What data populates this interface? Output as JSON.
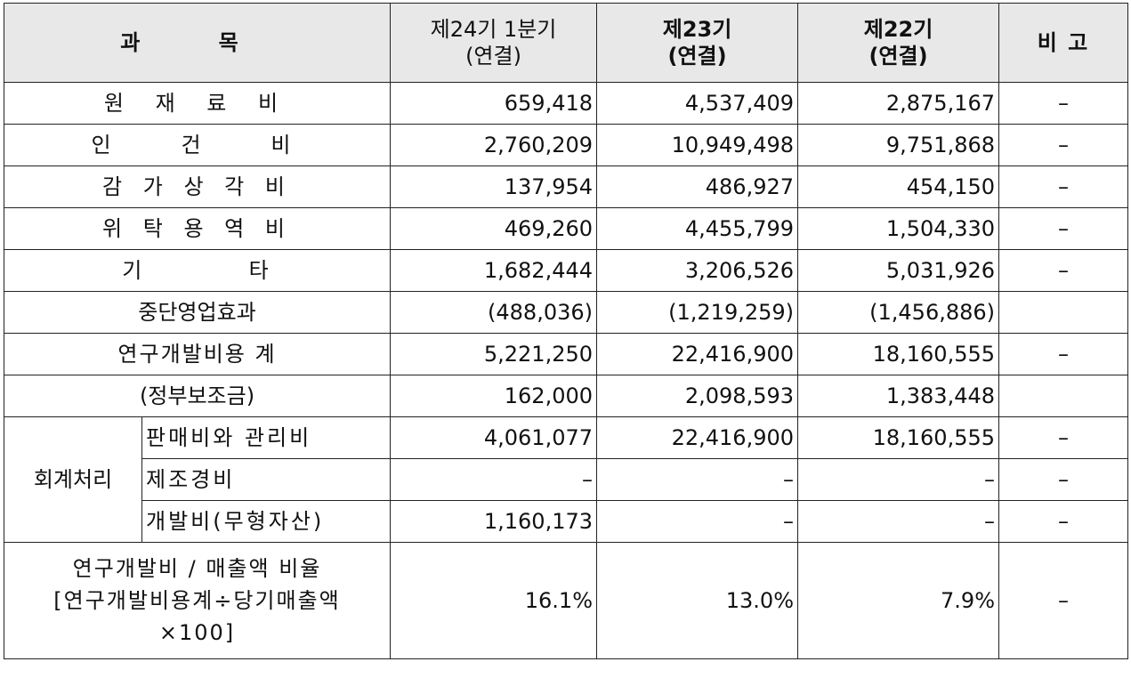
{
  "header": {
    "item": "과        목",
    "p24_line1": "제24기 1분기",
    "p24_line2": "(연결)",
    "p23_line1": "제23기",
    "p23_line2": "(연결)",
    "p22_line1": "제22기",
    "p22_line2": "(연결)",
    "note": "비 고"
  },
  "rows": [
    {
      "label": "원 재 료 비",
      "p24": "659,418",
      "p23": "4,537,409",
      "p22": "2,875,167",
      "note": "–"
    },
    {
      "label": "인   건   비",
      "p24": "2,760,209",
      "p23": "10,949,498",
      "p22": "9,751,868",
      "note": "–"
    },
    {
      "label": "감 가 상 각 비",
      "p24": "137,954",
      "p23": "486,927",
      "p22": "454,150",
      "note": "–"
    },
    {
      "label": "위 탁 용 역 비",
      "p24": "469,260",
      "p23": "4,455,799",
      "p22": "1,504,330",
      "note": "–"
    },
    {
      "label": "기          타",
      "p24": "1,682,444",
      "p23": "3,206,526",
      "p22": "5,031,926",
      "note": "–"
    },
    {
      "label": "중단영업효과",
      "p24": "(488,036)",
      "p23": "(1,219,259)",
      "p22": "(1,456,886)",
      "note": ""
    },
    {
      "label": "연구개발비용 계",
      "p24": "5,221,250",
      "p23": "22,416,900",
      "p22": "18,160,555",
      "note": "–"
    },
    {
      "label": "(정부보조금)",
      "p24": "162,000",
      "p23": "2,098,593",
      "p22": "1,383,448",
      "note": ""
    }
  ],
  "accounting": {
    "group_label": "회계처리",
    "rows": [
      {
        "label": "판매비와 관리비",
        "p24": "4,061,077",
        "p23": "22,416,900",
        "p22": "18,160,555",
        "note": "–"
      },
      {
        "label": "제조경비",
        "p24": "–",
        "p23": "–",
        "p22": "–",
        "note": "–"
      },
      {
        "label": "개발비(무형자산)",
        "p24": "1,160,173",
        "p23": "–",
        "p22": "–",
        "note": "–"
      }
    ]
  },
  "ratio": {
    "line1": "연구개발비 / 매출액 비율",
    "line2": "[연구개발비용계÷당기매출액",
    "line3": "×100]",
    "p24": "16.1%",
    "p23": "13.0%",
    "p22": "7.9%",
    "note": "–"
  }
}
